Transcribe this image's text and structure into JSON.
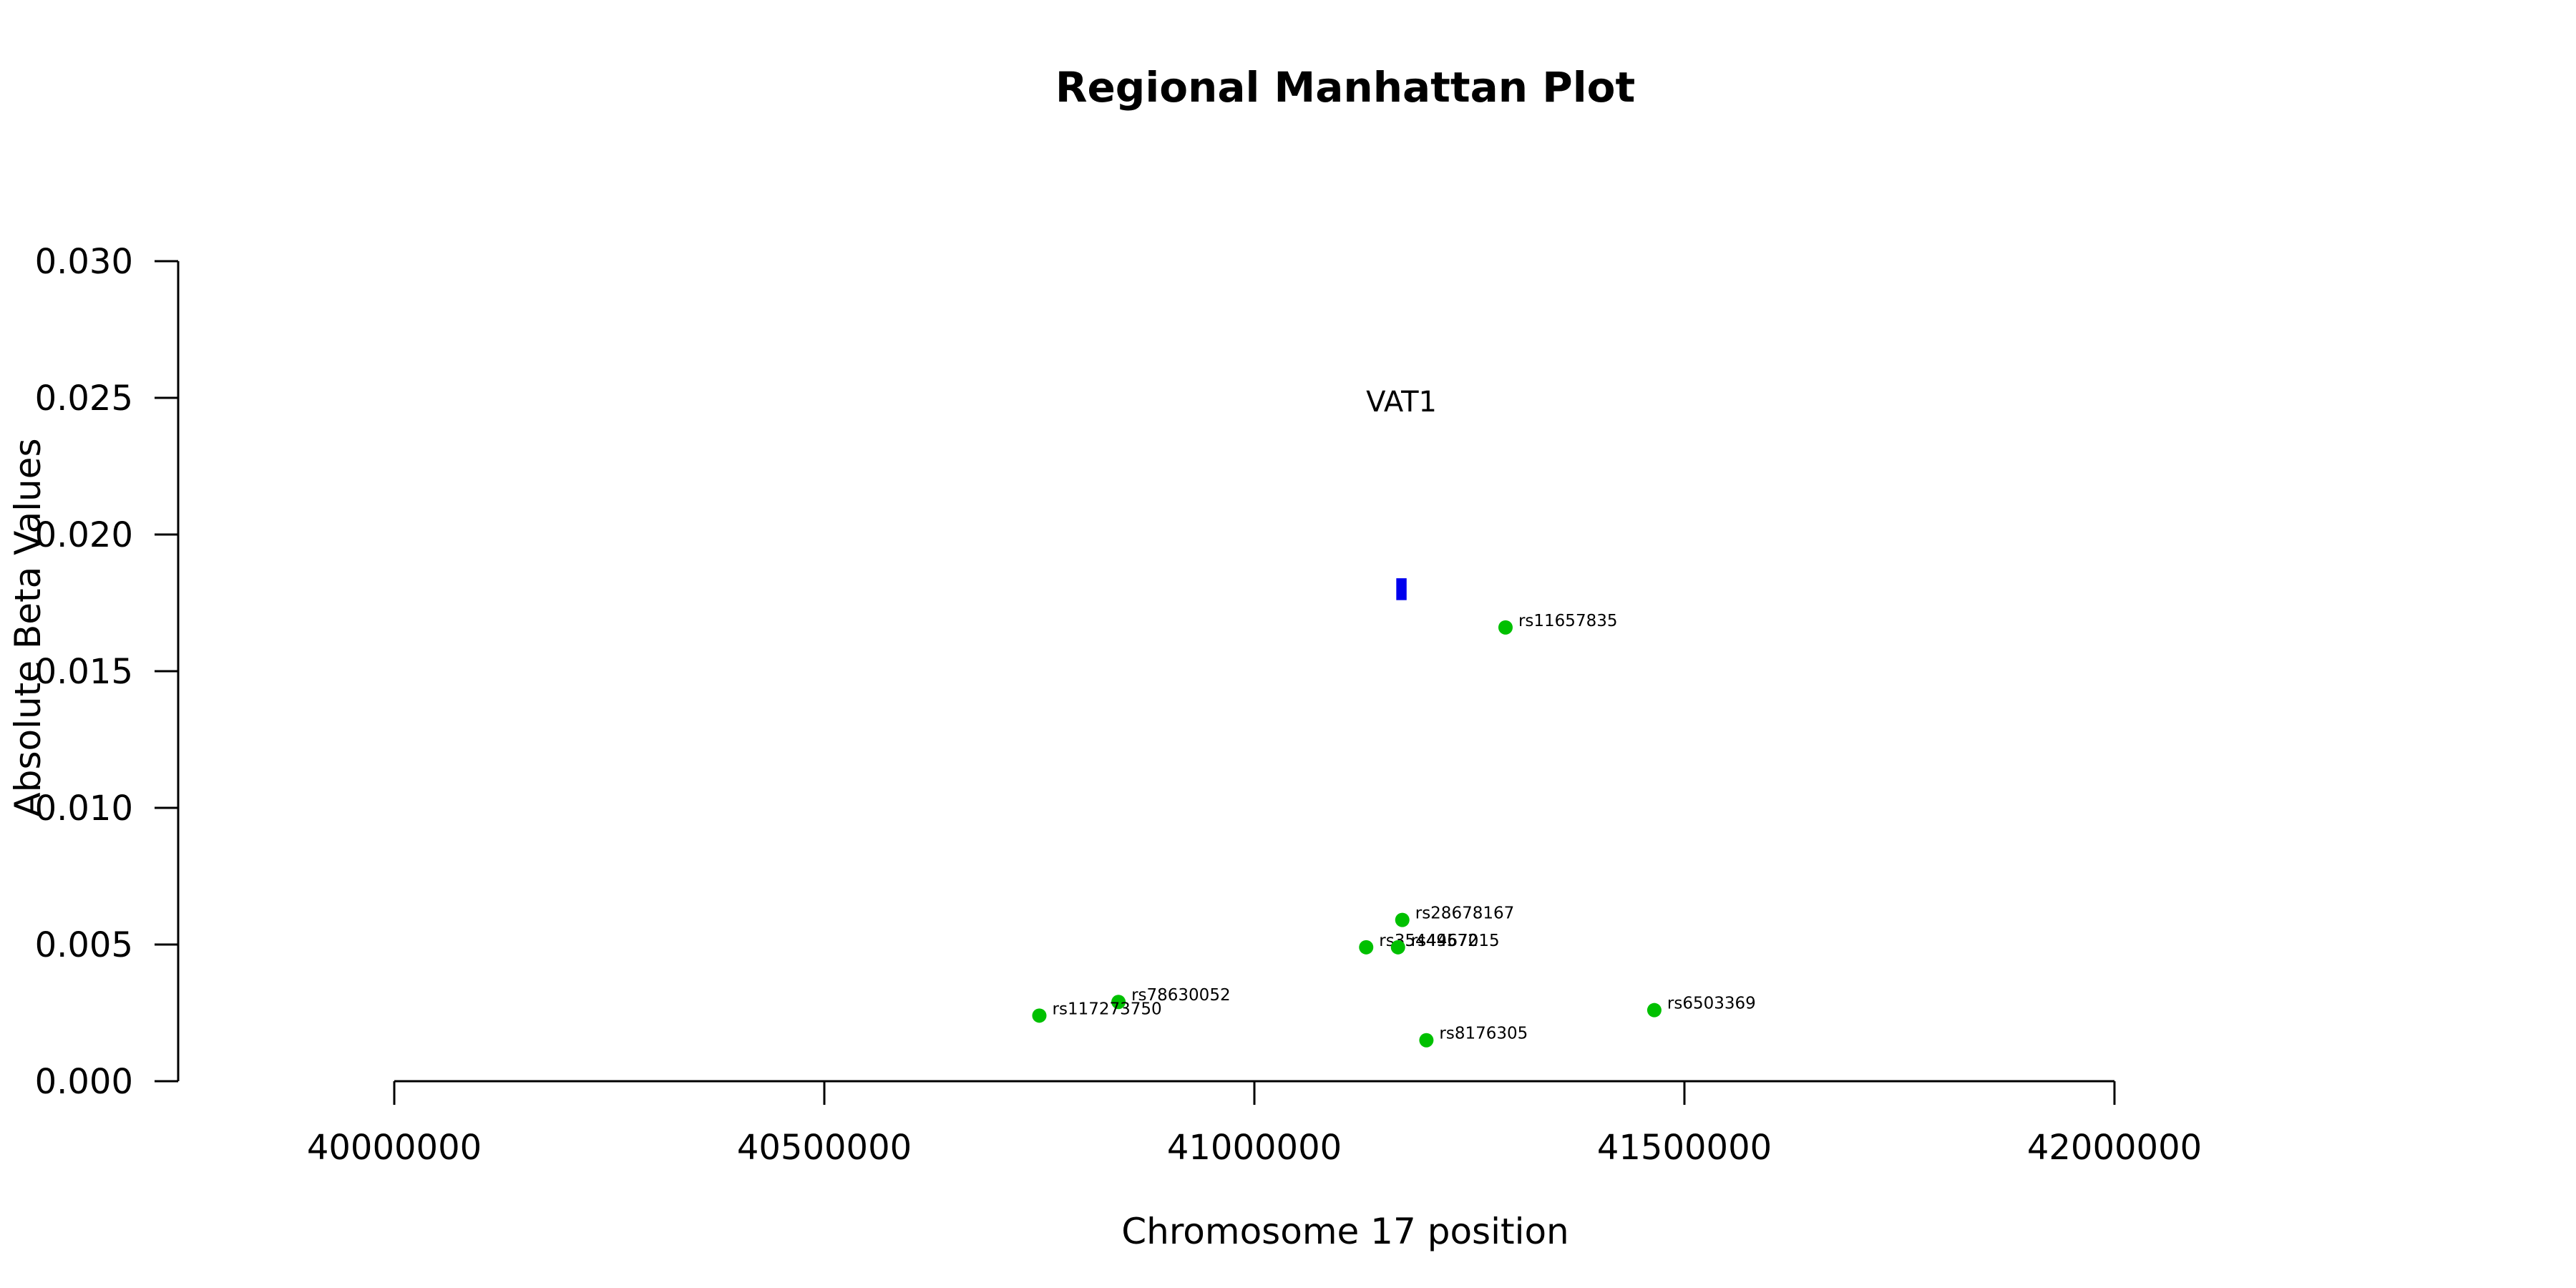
{
  "chart_data": {
    "type": "scatter",
    "title": "Regional Manhattan Plot",
    "xlabel": "Chromosome 17 position",
    "ylabel": "Absolute Beta Values",
    "xlim": [
      40000000,
      42000000
    ],
    "ylim": [
      0,
      0.03
    ],
    "x_ticks": [
      40000000,
      40500000,
      41000000,
      41500000,
      42000000
    ],
    "x_tick_labels": [
      "40000000",
      "40500000",
      "41000000",
      "41500000",
      "42000000"
    ],
    "y_ticks": [
      0,
      0.005,
      0.01,
      0.015,
      0.02,
      0.025,
      0.03
    ],
    "y_tick_labels": [
      "0.000",
      "0.005",
      "0.010",
      "0.015",
      "0.020",
      "0.025",
      "0.030"
    ],
    "grid": false,
    "point_color": "#00c000",
    "gene_color": "#0000ee",
    "points": [
      {
        "snp": "rs11657835",
        "x": 41292000,
        "y": 0.0166
      },
      {
        "snp": "rs28678167",
        "x": 41172000,
        "y": 0.0059
      },
      {
        "snp": "rs35449572",
        "x": 41130000,
        "y": 0.0049
      },
      {
        "snp": "rs4467015",
        "x": 41167000,
        "y": 0.0049
      },
      {
        "snp": "rs78630052",
        "x": 40842000,
        "y": 0.0029
      },
      {
        "snp": "rs117273750",
        "x": 40750000,
        "y": 0.0024
      },
      {
        "snp": "rs6503369",
        "x": 41465000,
        "y": 0.0026
      },
      {
        "snp": "rs8176305",
        "x": 41200000,
        "y": 0.0015
      }
    ],
    "genes": [
      {
        "name": "VAT1",
        "start": 41165000,
        "end": 41177000,
        "y_low": 0.0176,
        "y_high": 0.0184,
        "label_y": 0.0245
      }
    ]
  }
}
